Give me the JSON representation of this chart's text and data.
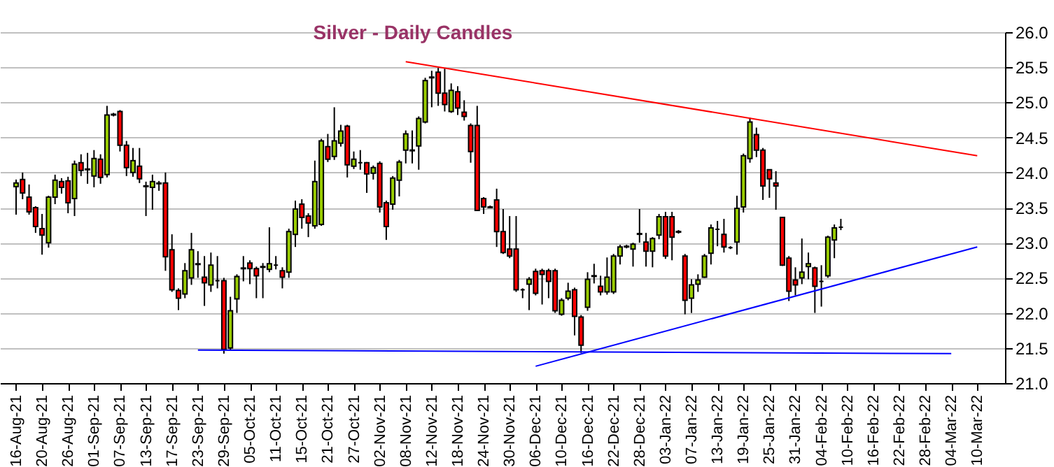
{
  "chart_data": {
    "type": "candlestick",
    "title": "Silver - Daily Candles",
    "categories": [
      "16-Aug-21",
      null,
      null,
      null,
      "20-Aug-21",
      null,
      null,
      null,
      "26-Aug-21",
      null,
      null,
      null,
      "01-Sep-21",
      null,
      null,
      null,
      "07-Sep-21",
      null,
      null,
      null,
      "13-Sep-21",
      null,
      null,
      null,
      "17-Sep-21",
      null,
      null,
      null,
      "23-Sep-21",
      null,
      null,
      null,
      "29-Sep-21",
      null,
      null,
      null,
      "05-Oct-21",
      null,
      null,
      null,
      "11-Oct-21",
      null,
      null,
      null,
      "15-Oct-21",
      null,
      null,
      null,
      "21-Oct-21",
      null,
      null,
      null,
      "27-Oct-21",
      null,
      null,
      null,
      "02-Nov-21",
      null,
      null,
      null,
      "08-Nov-21",
      null,
      null,
      null,
      "12-Nov-21",
      null,
      null,
      null,
      "18-Nov-21",
      null,
      null,
      null,
      "24-Nov-21",
      null,
      null,
      null,
      "30-Nov-21",
      null,
      null,
      null,
      "06-Dec-21",
      null,
      null,
      null,
      "10-Dec-21",
      null,
      null,
      null,
      "16-Dec-21",
      null,
      null,
      null,
      "22-Dec-21",
      null,
      null,
      null,
      "28-Dec-21",
      null,
      null,
      null,
      "03-Jan-22",
      null,
      null,
      null,
      "07-Jan-22",
      null,
      null,
      null,
      "13-Jan-22",
      null,
      null,
      null,
      "19-Jan-22",
      null,
      null,
      null,
      "25-Jan-22",
      null,
      null,
      null,
      "31-Jan-22",
      null,
      null,
      null,
      "04-Feb-22",
      null,
      null,
      null,
      "10-Feb-22",
      null,
      null,
      null,
      "16-Feb-22",
      null,
      null,
      null,
      "22-Feb-22",
      null,
      null,
      null,
      "28-Feb-22",
      null,
      null,
      null,
      "04-Mar-22",
      null,
      null,
      null,
      "10-Mar-22",
      null,
      null,
      null
    ],
    "ohlc": [
      [
        23.8,
        23.9,
        23.4,
        23.85
      ],
      [
        23.9,
        24.0,
        23.62,
        23.71
      ],
      [
        23.65,
        23.83,
        23.4,
        23.44
      ],
      [
        23.5,
        23.52,
        23.14,
        23.23
      ],
      [
        23.2,
        23.41,
        22.83,
        23.11
      ],
      [
        23.0,
        23.67,
        22.93,
        23.65
      ],
      [
        23.65,
        23.97,
        23.55,
        23.89
      ],
      [
        23.87,
        23.92,
        23.7,
        23.79
      ],
      [
        23.88,
        23.94,
        23.42,
        23.57
      ],
      [
        23.63,
        24.17,
        23.38,
        24.12
      ],
      [
        24.14,
        24.26,
        23.95,
        24.03
      ],
      [
        24.04,
        24.28,
        23.84,
        24.05
      ],
      [
        23.95,
        24.32,
        23.79,
        24.2
      ],
      [
        24.19,
        24.26,
        23.84,
        23.93
      ],
      [
        23.97,
        24.95,
        23.93,
        24.82
      ],
      [
        24.82,
        24.85,
        24.8,
        24.83
      ],
      [
        24.87,
        24.89,
        24.3,
        24.39
      ],
      [
        24.39,
        24.45,
        23.95,
        24.07
      ],
      [
        24.0,
        24.35,
        23.94,
        24.17
      ],
      [
        24.09,
        24.35,
        23.85,
        23.91
      ],
      [
        23.8,
        23.87,
        23.38,
        23.81
      ],
      [
        23.79,
        23.97,
        23.47,
        23.87
      ],
      [
        23.85,
        23.88,
        23.74,
        23.84
      ],
      [
        23.85,
        24.0,
        22.6,
        22.8
      ],
      [
        22.9,
        23.12,
        22.3,
        22.33
      ],
      [
        22.32,
        22.35,
        22.04,
        22.21
      ],
      [
        22.27,
        22.71,
        22.21,
        22.6
      ],
      [
        22.5,
        23.14,
        22.4,
        22.9
      ],
      [
        22.7,
        22.88,
        22.5,
        22.69
      ],
      [
        22.51,
        22.81,
        22.1,
        22.43
      ],
      [
        22.4,
        22.86,
        22.3,
        22.68
      ],
      [
        22.46,
        22.81,
        22.35,
        22.46
      ],
      [
        22.46,
        22.5,
        21.42,
        21.48
      ],
      [
        21.5,
        22.23,
        21.46,
        22.03
      ],
      [
        22.2,
        22.55,
        22.0,
        22.52
      ],
      [
        22.63,
        22.81,
        22.45,
        22.64
      ],
      [
        22.71,
        22.75,
        22.41,
        22.63
      ],
      [
        22.63,
        22.66,
        22.21,
        22.53
      ],
      [
        22.65,
        22.71,
        22.21,
        22.66
      ],
      [
        22.62,
        23.22,
        22.58,
        22.7
      ],
      [
        22.68,
        22.81,
        22.62,
        22.68
      ],
      [
        22.6,
        22.65,
        22.35,
        22.51
      ],
      [
        22.58,
        23.2,
        22.5,
        23.16
      ],
      [
        23.12,
        23.6,
        22.94,
        23.48
      ],
      [
        23.55,
        23.62,
        23.2,
        23.36
      ],
      [
        23.38,
        23.42,
        23.08,
        23.28
      ],
      [
        23.24,
        24.17,
        23.2,
        23.87
      ],
      [
        23.26,
        24.48,
        23.24,
        24.45
      ],
      [
        24.37,
        24.55,
        24.15,
        24.19
      ],
      [
        24.23,
        24.93,
        24.18,
        24.45
      ],
      [
        24.42,
        24.68,
        24.37,
        24.59
      ],
      [
        24.66,
        24.68,
        23.93,
        24.11
      ],
      [
        24.09,
        24.3,
        24.05,
        24.19
      ],
      [
        24.14,
        24.32,
        24.04,
        24.14
      ],
      [
        24.14,
        24.15,
        23.71,
        23.98
      ],
      [
        23.99,
        24.1,
        23.9,
        24.07
      ],
      [
        24.13,
        24.16,
        23.43,
        23.51
      ],
      [
        23.57,
        23.6,
        23.04,
        23.23
      ],
      [
        23.55,
        23.95,
        23.47,
        23.92
      ],
      [
        23.89,
        24.18,
        23.66,
        24.15
      ],
      [
        24.32,
        24.6,
        24.13,
        24.55
      ],
      [
        24.31,
        24.6,
        24.13,
        24.32
      ],
      [
        24.38,
        24.8,
        24.04,
        24.77
      ],
      [
        24.72,
        25.35,
        24.7,
        25.31
      ],
      [
        25.35,
        25.45,
        24.93,
        25.36
      ],
      [
        25.43,
        25.49,
        24.95,
        25.13
      ],
      [
        25.13,
        25.48,
        24.87,
        24.97
      ],
      [
        24.87,
        25.27,
        24.85,
        25.17
      ],
      [
        25.15,
        25.23,
        24.82,
        24.92
      ],
      [
        24.86,
        25.03,
        24.74,
        24.8
      ],
      [
        24.67,
        24.7,
        24.14,
        24.3
      ],
      [
        24.67,
        24.95,
        23.45,
        23.46
      ],
      [
        23.63,
        23.65,
        23.41,
        23.51
      ],
      [
        23.51,
        23.53,
        23.49,
        23.5
      ],
      [
        23.61,
        23.77,
        22.94,
        23.16
      ],
      [
        23.16,
        23.48,
        22.84,
        22.86
      ],
      [
        22.91,
        23.38,
        22.78,
        22.81
      ],
      [
        22.91,
        23.38,
        22.3,
        22.33
      ],
      [
        22.33,
        22.35,
        22.21,
        22.33
      ],
      [
        22.41,
        22.51,
        22.04,
        22.48
      ],
      [
        22.59,
        22.63,
        22.25,
        22.28
      ],
      [
        22.6,
        22.63,
        22.12,
        22.55
      ],
      [
        22.6,
        22.63,
        22.21,
        22.45
      ],
      [
        22.6,
        22.63,
        22.0,
        22.03
      ],
      [
        21.98,
        22.21,
        21.96,
        22.18
      ],
      [
        22.21,
        22.43,
        22.18,
        22.31
      ],
      [
        22.33,
        22.36,
        21.68,
        21.95
      ],
      [
        21.94,
        21.97,
        21.43,
        21.54
      ],
      [
        22.08,
        22.58,
        22.03,
        22.48
      ],
      [
        22.52,
        22.7,
        22.42,
        22.53
      ],
      [
        22.38,
        22.53,
        22.25,
        22.3
      ],
      [
        22.3,
        22.79,
        22.26,
        22.51
      ],
      [
        22.3,
        22.84,
        22.27,
        22.81
      ],
      [
        22.81,
        22.97,
        22.69,
        22.94
      ],
      [
        22.94,
        22.97,
        22.92,
        22.95
      ],
      [
        22.91,
        23.0,
        22.66,
        22.98
      ],
      [
        23.12,
        23.48,
        23.0,
        23.13
      ],
      [
        23.01,
        23.14,
        22.66,
        22.88
      ],
      [
        22.88,
        23.08,
        22.65,
        23.06
      ],
      [
        23.11,
        23.41,
        23.05,
        23.37
      ],
      [
        23.37,
        23.44,
        22.77,
        22.81
      ],
      [
        23.37,
        23.44,
        22.75,
        23.08
      ],
      [
        23.16,
        23.18,
        23.13,
        23.15
      ],
      [
        22.81,
        22.84,
        21.98,
        22.18
      ],
      [
        22.21,
        22.48,
        22.0,
        22.4
      ],
      [
        22.41,
        22.55,
        22.3,
        22.47
      ],
      [
        22.51,
        22.84,
        22.5,
        22.81
      ],
      [
        22.85,
        23.26,
        22.69,
        23.21
      ],
      [
        23.19,
        23.31,
        22.95,
        23.19
      ],
      [
        23.12,
        23.34,
        22.86,
        22.94
      ],
      [
        22.93,
        22.95,
        22.91,
        22.93
      ],
      [
        23.01,
        23.67,
        22.83,
        23.49
      ],
      [
        23.51,
        24.27,
        23.43,
        24.24
      ],
      [
        24.2,
        24.78,
        24.14,
        24.72
      ],
      [
        24.54,
        24.64,
        24.22,
        24.32
      ],
      [
        24.32,
        24.35,
        23.61,
        23.81
      ],
      [
        24.04,
        24.04,
        23.64,
        23.91
      ],
      [
        23.85,
        24.02,
        23.47,
        23.81
      ],
      [
        23.36,
        23.37,
        22.67,
        22.68
      ],
      [
        22.78,
        22.81,
        22.17,
        22.31
      ],
      [
        22.47,
        22.65,
        22.25,
        22.4
      ],
      [
        22.5,
        23.06,
        22.41,
        22.58
      ],
      [
        22.66,
        22.86,
        22.48,
        22.7
      ],
      [
        22.64,
        22.66,
        22.0,
        22.38
      ],
      [
        22.45,
        22.68,
        22.09,
        22.45
      ],
      [
        22.53,
        23.1,
        22.5,
        23.08
      ],
      [
        23.04,
        23.26,
        22.78,
        23.21
      ],
      [
        23.22,
        23.34,
        23.18,
        23.22
      ],
      null,
      null,
      null,
      null,
      null,
      null,
      null,
      null,
      null,
      null,
      null,
      null,
      null,
      null,
      null,
      null,
      null,
      null,
      null,
      null,
      null,
      null,
      null,
      null
    ],
    "colors": [
      "#99cc00",
      "#ff0000",
      "#ff0000",
      "#ff0000",
      "#ff0000",
      "#99cc00",
      "#99cc00",
      "#ff0000",
      "#ff0000",
      "#99cc00",
      "#ff0000",
      "#000000",
      "#99cc00",
      "#ff0000",
      "#99cc00",
      "#000000",
      "#ff0000",
      "#ff0000",
      "#99cc00",
      "#ff0000",
      "#000000",
      "#99cc00",
      "#000000",
      "#ff0000",
      "#ff0000",
      "#ff0000",
      "#99cc00",
      "#99cc00",
      "#000000",
      "#ff0000",
      "#99cc00",
      "#000000",
      "#ff0000",
      "#99cc00",
      "#99cc00",
      "#000000",
      "#ff0000",
      "#ff0000",
      "#000000",
      "#99cc00",
      "#000000",
      "#ff0000",
      "#99cc00",
      "#99cc00",
      "#ff0000",
      "#ff0000",
      "#99cc00",
      "#99cc00",
      "#ff0000",
      "#99cc00",
      "#99cc00",
      "#ff0000",
      "#99cc00",
      "#000000",
      "#ff0000",
      "#99cc00",
      "#ff0000",
      "#ff0000",
      "#99cc00",
      "#99cc00",
      "#99cc00",
      "#000000",
      "#99cc00",
      "#99cc00",
      "#000000",
      "#ff0000",
      "#ff0000",
      "#99cc00",
      "#ff0000",
      "#ff0000",
      "#ff0000",
      "#ff0000",
      "#ff0000",
      "#000000",
      "#ff0000",
      "#ff0000",
      "#ff0000",
      "#ff0000",
      "#000000",
      "#99cc00",
      "#ff0000",
      "#ff0000",
      "#ff0000",
      "#ff0000",
      "#99cc00",
      "#99cc00",
      "#ff0000",
      "#ff0000",
      "#99cc00",
      "#000000",
      "#ff0000",
      "#99cc00",
      "#99cc00",
      "#99cc00",
      "#000000",
      "#99cc00",
      "#000000",
      "#ff0000",
      "#99cc00",
      "#99cc00",
      "#ff0000",
      "#ff0000",
      "#000000",
      "#ff0000",
      "#99cc00",
      "#99cc00",
      "#99cc00",
      "#99cc00",
      "#000000",
      "#ff0000",
      "#000000",
      "#99cc00",
      "#99cc00",
      "#99cc00",
      "#ff0000",
      "#ff0000",
      "#ff0000",
      "#ff0000",
      "#ff0000",
      "#ff0000",
      "#ff0000",
      "#99cc00",
      "#99cc00",
      "#ff0000",
      "#000000",
      "#99cc00",
      "#99cc00",
      "#000000",
      null,
      null,
      null,
      null,
      null,
      null,
      null,
      null,
      null,
      null,
      null,
      null,
      null,
      null,
      null,
      null,
      null,
      null,
      null,
      null,
      null,
      null,
      null,
      null
    ],
    "series": [
      {
        "type": "line",
        "color": "#ff0000",
        "x": [
          "08-Nov-21",
          "10-Mar-22"
        ],
        "values": [
          25.58,
          24.24
        ]
      },
      {
        "type": "line",
        "color": "#0000ff",
        "x": [
          "06-Dec-21",
          "10-Mar-22"
        ],
        "values": [
          21.24,
          22.94
        ]
      },
      {
        "type": "line",
        "color": "#0000ff",
        "x": [
          "23-Sep-21",
          "04-Mar-22"
        ],
        "values": [
          21.47,
          21.42
        ]
      }
    ],
    "ylim": [
      21.0,
      26.0
    ],
    "yticks": [
      {
        "value": 21.0,
        "label": "21.0"
      },
      {
        "value": 21.5,
        "label": "21.5"
      },
      {
        "value": 22.0,
        "label": "22.0"
      },
      {
        "value": 22.5,
        "label": "22.5"
      },
      {
        "value": 23.0,
        "label": "23.0"
      },
      {
        "value": 23.5,
        "label": "23.5"
      },
      {
        "value": 24.0,
        "label": "24.0"
      },
      {
        "value": 24.5,
        "label": "24.5"
      },
      {
        "value": 25.0,
        "label": "25.0"
      },
      {
        "value": 25.5,
        "label": "25.5"
      },
      {
        "value": 26.0,
        "label": "26.0"
      }
    ],
    "grid": "y"
  }
}
